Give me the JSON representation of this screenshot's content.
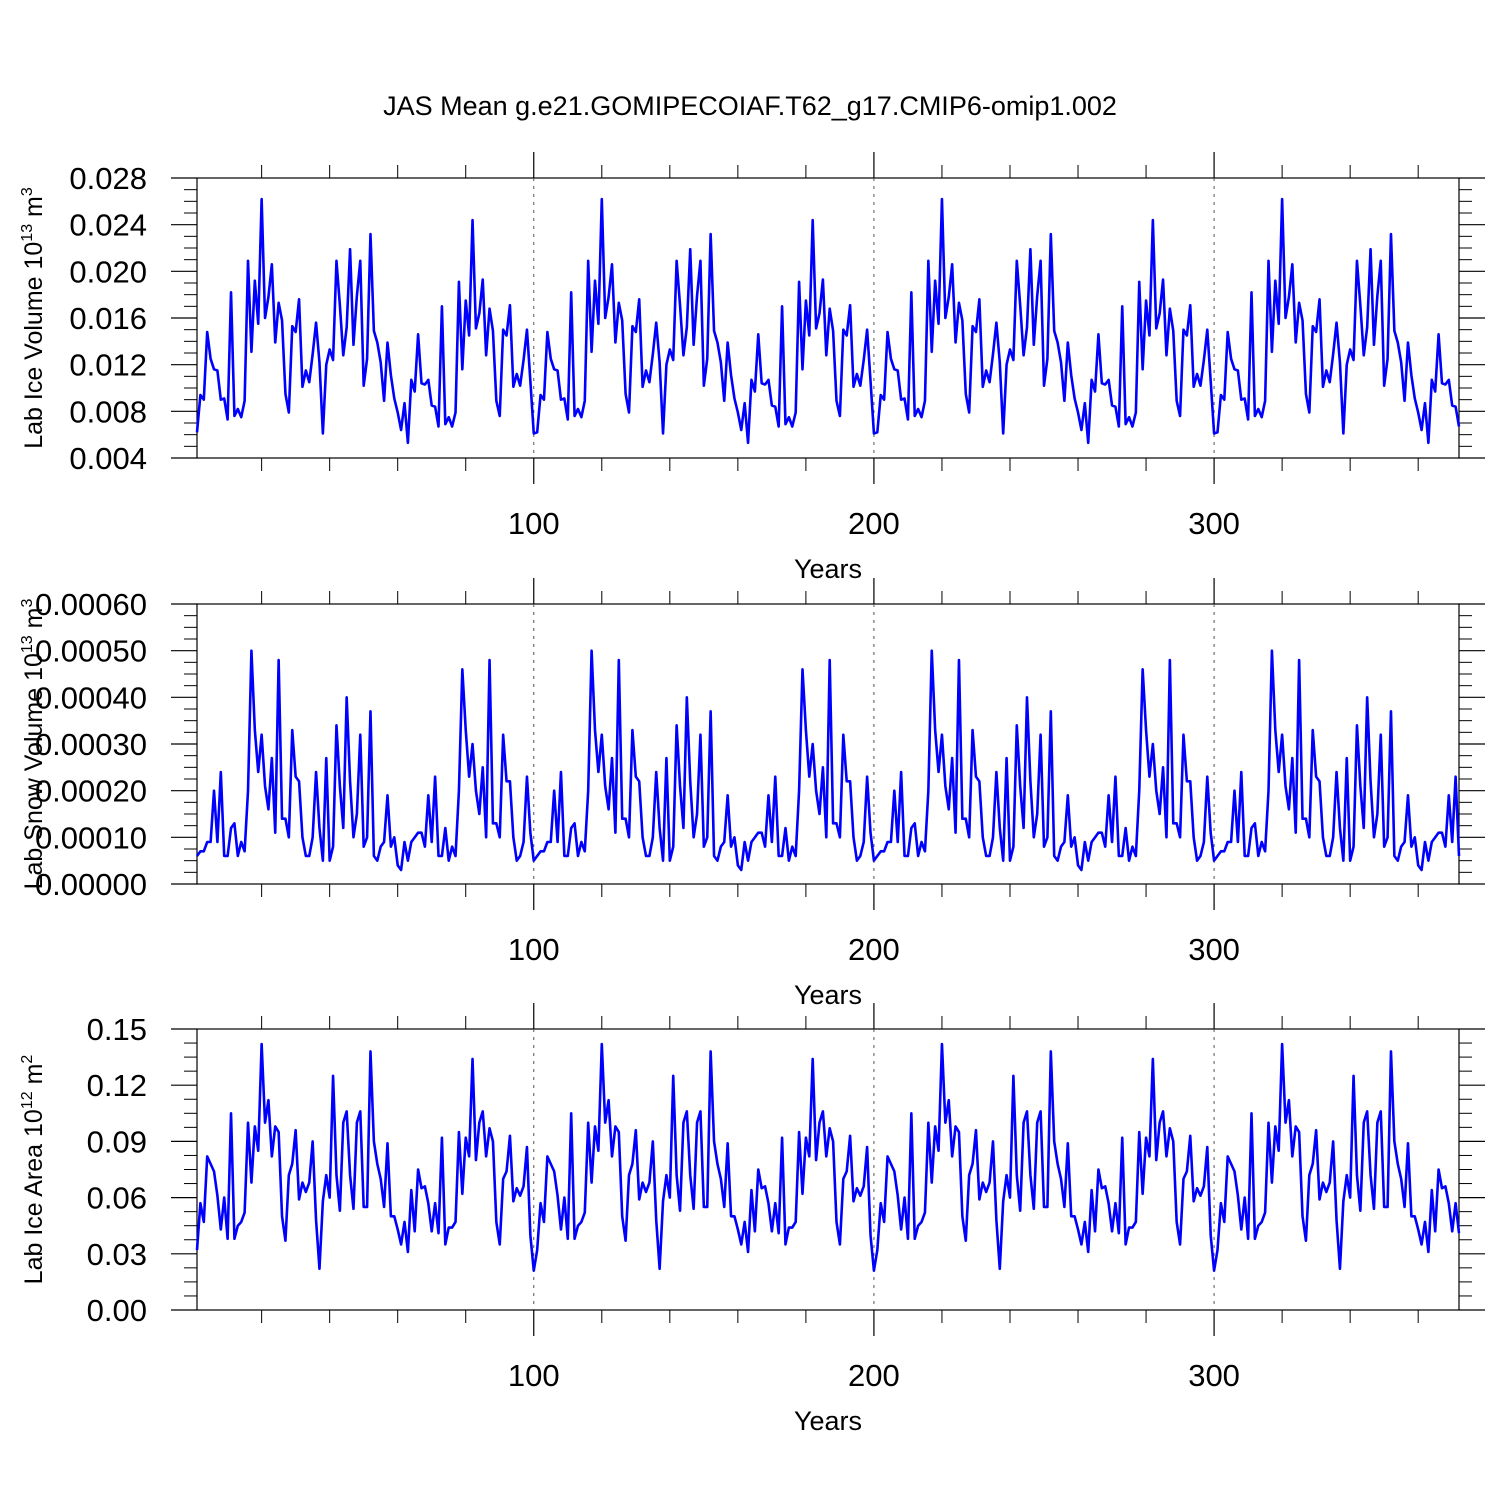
{
  "figure": {
    "title": "JAS Mean g.e21.GOMIPECOIAF.T62_g17.CMIP6-omip1.002"
  },
  "chart_data": [
    {
      "type": "line",
      "ylabel_main": "Lab Ice Volume 10",
      "ylabel_exp": "13",
      "ylabel_unit": " m",
      "ylabel_unit_exp": "3",
      "xlabel": "Years",
      "xlim": [
        1,
        372
      ],
      "ylim": [
        0.004,
        0.028
      ],
      "yticks": [
        "0.004",
        "0.008",
        "0.012",
        "0.016",
        "0.020",
        "0.024",
        "0.028"
      ],
      "xticks": [
        "100",
        "200",
        "300"
      ],
      "color": "#0000ff",
      "base": [
        0.0062,
        0.0094,
        0.009,
        0.0148,
        0.0125,
        0.0116,
        0.0115,
        0.009,
        0.0091,
        0.0073,
        0.0182,
        0.0076,
        0.0082,
        0.0075,
        0.0089,
        0.0209,
        0.0131,
        0.0192,
        0.0155,
        0.0262,
        0.016,
        0.0178,
        0.0206,
        0.0139,
        0.0173,
        0.0158,
        0.0095,
        0.0079,
        0.0153,
        0.0148,
        0.0176,
        0.0101,
        0.0115,
        0.0105,
        0.0129,
        0.0156,
        0.0122,
        0.0061,
        0.012,
        0.0133,
        0.0124,
        0.0209,
        0.0171,
        0.0128,
        0.0152,
        0.0219,
        0.0137,
        0.0179,
        0.0209,
        0.0102,
        0.0125,
        0.0232,
        0.0149,
        0.0139,
        0.0122,
        0.0089,
        0.0139,
        0.0111,
        0.0091,
        0.0079,
        0.0064,
        0.0087,
        0.0053,
        0.0107,
        0.0097,
        0.0146,
        0.0104,
        0.0103,
        0.0107,
        0.0085,
        0.0084,
        0.0067,
        0.017,
        0.0069,
        0.0075,
        0.0067,
        0.0079,
        0.0191,
        0.0116,
        0.0175,
        0.0145,
        0.0244,
        0.0151,
        0.0164,
        0.0193,
        0.0128,
        0.0168,
        0.0149,
        0.0089,
        0.0076,
        0.015,
        0.0145,
        0.0171,
        0.0101,
        0.0112,
        0.0102,
        0.0124,
        0.015,
        0.0106,
        0.0061
      ]
    },
    {
      "type": "line",
      "ylabel_main": "Lab Snow Volume 10",
      "ylabel_exp": "13",
      "ylabel_unit": " m",
      "ylabel_unit_exp": "3",
      "xlabel": "Years",
      "xlim": [
        1,
        372
      ],
      "ylim": [
        0,
        0.0006
      ],
      "yticks": [
        "0.00000",
        "0.00010",
        "0.00020",
        "0.00030",
        "0.00040",
        "0.00050",
        "0.00060"
      ],
      "xticks": [
        "100",
        "200",
        "300"
      ],
      "color": "#0000ff",
      "base": [
        6e-05,
        7e-05,
        7e-05,
        9e-05,
        9e-05,
        0.0002,
        9e-05,
        0.00024,
        6e-05,
        6e-05,
        0.00012,
        0.00013,
        6e-05,
        9e-05,
        7e-05,
        0.0002,
        0.0005,
        0.00033,
        0.00024,
        0.00032,
        0.00021,
        0.00016,
        0.00027,
        0.00011,
        0.00048,
        0.00014,
        0.00014,
        0.0001,
        0.00033,
        0.00023,
        0.00022,
        0.0001,
        6e-05,
        6e-05,
        0.0001,
        0.00024,
        0.00012,
        5e-05,
        0.00027,
        5e-05,
        8e-05,
        0.00034,
        0.00021,
        0.00012,
        0.0004,
        0.00022,
        0.0001,
        0.00015,
        0.00032,
        8e-05,
        0.0001,
        0.00037,
        6e-05,
        5e-05,
        8e-05,
        9e-05,
        0.00019,
        8e-05,
        0.0001,
        4e-05,
        3e-05,
        9e-05,
        5e-05,
        9e-05,
        0.0001,
        0.00011,
        0.00011,
        8e-05,
        0.00019,
        9e-05,
        0.00023,
        6e-05,
        6e-05,
        0.00012,
        5e-05,
        8e-05,
        6e-05,
        0.0002,
        0.00046,
        0.00033,
        0.00023,
        0.0003,
        0.0002,
        0.00015,
        0.00025,
        0.0001,
        0.00048,
        0.00013,
        0.00013,
        0.0001,
        0.00032,
        0.00022,
        0.00022,
        0.0001,
        5e-05,
        6e-05,
        9e-05,
        0.00023,
        0.00011,
        5e-05
      ]
    },
    {
      "type": "line",
      "ylabel_main": "Lab Ice Area 10",
      "ylabel_exp": "12",
      "ylabel_unit": " m",
      "ylabel_unit_exp": "2",
      "xlabel": "Years",
      "xlim": [
        1,
        372
      ],
      "ylim": [
        0,
        0.15
      ],
      "yticks": [
        "0.00",
        "0.03",
        "0.06",
        "0.09",
        "0.12",
        "0.15"
      ],
      "xticks": [
        "100",
        "200",
        "300"
      ],
      "color": "#0000ff",
      "base": [
        0.032,
        0.057,
        0.047,
        0.082,
        0.078,
        0.074,
        0.061,
        0.043,
        0.06,
        0.038,
        0.105,
        0.038,
        0.045,
        0.047,
        0.052,
        0.1,
        0.068,
        0.098,
        0.085,
        0.142,
        0.1,
        0.112,
        0.082,
        0.098,
        0.095,
        0.05,
        0.037,
        0.072,
        0.078,
        0.096,
        0.059,
        0.068,
        0.063,
        0.068,
        0.09,
        0.048,
        0.022,
        0.058,
        0.072,
        0.06,
        0.125,
        0.072,
        0.053,
        0.1,
        0.106,
        0.072,
        0.054,
        0.1,
        0.106,
        0.055,
        0.055,
        0.138,
        0.09,
        0.078,
        0.07,
        0.055,
        0.089,
        0.05,
        0.05,
        0.043,
        0.035,
        0.047,
        0.031,
        0.064,
        0.042,
        0.075,
        0.065,
        0.066,
        0.057,
        0.042,
        0.057,
        0.041,
        0.092,
        0.035,
        0.044,
        0.044,
        0.047,
        0.095,
        0.062,
        0.092,
        0.082,
        0.134,
        0.08,
        0.1,
        0.106,
        0.082,
        0.097,
        0.09,
        0.047,
        0.035,
        0.07,
        0.074,
        0.093,
        0.058,
        0.065,
        0.061,
        0.066,
        0.087,
        0.04,
        0.021
      ]
    }
  ]
}
